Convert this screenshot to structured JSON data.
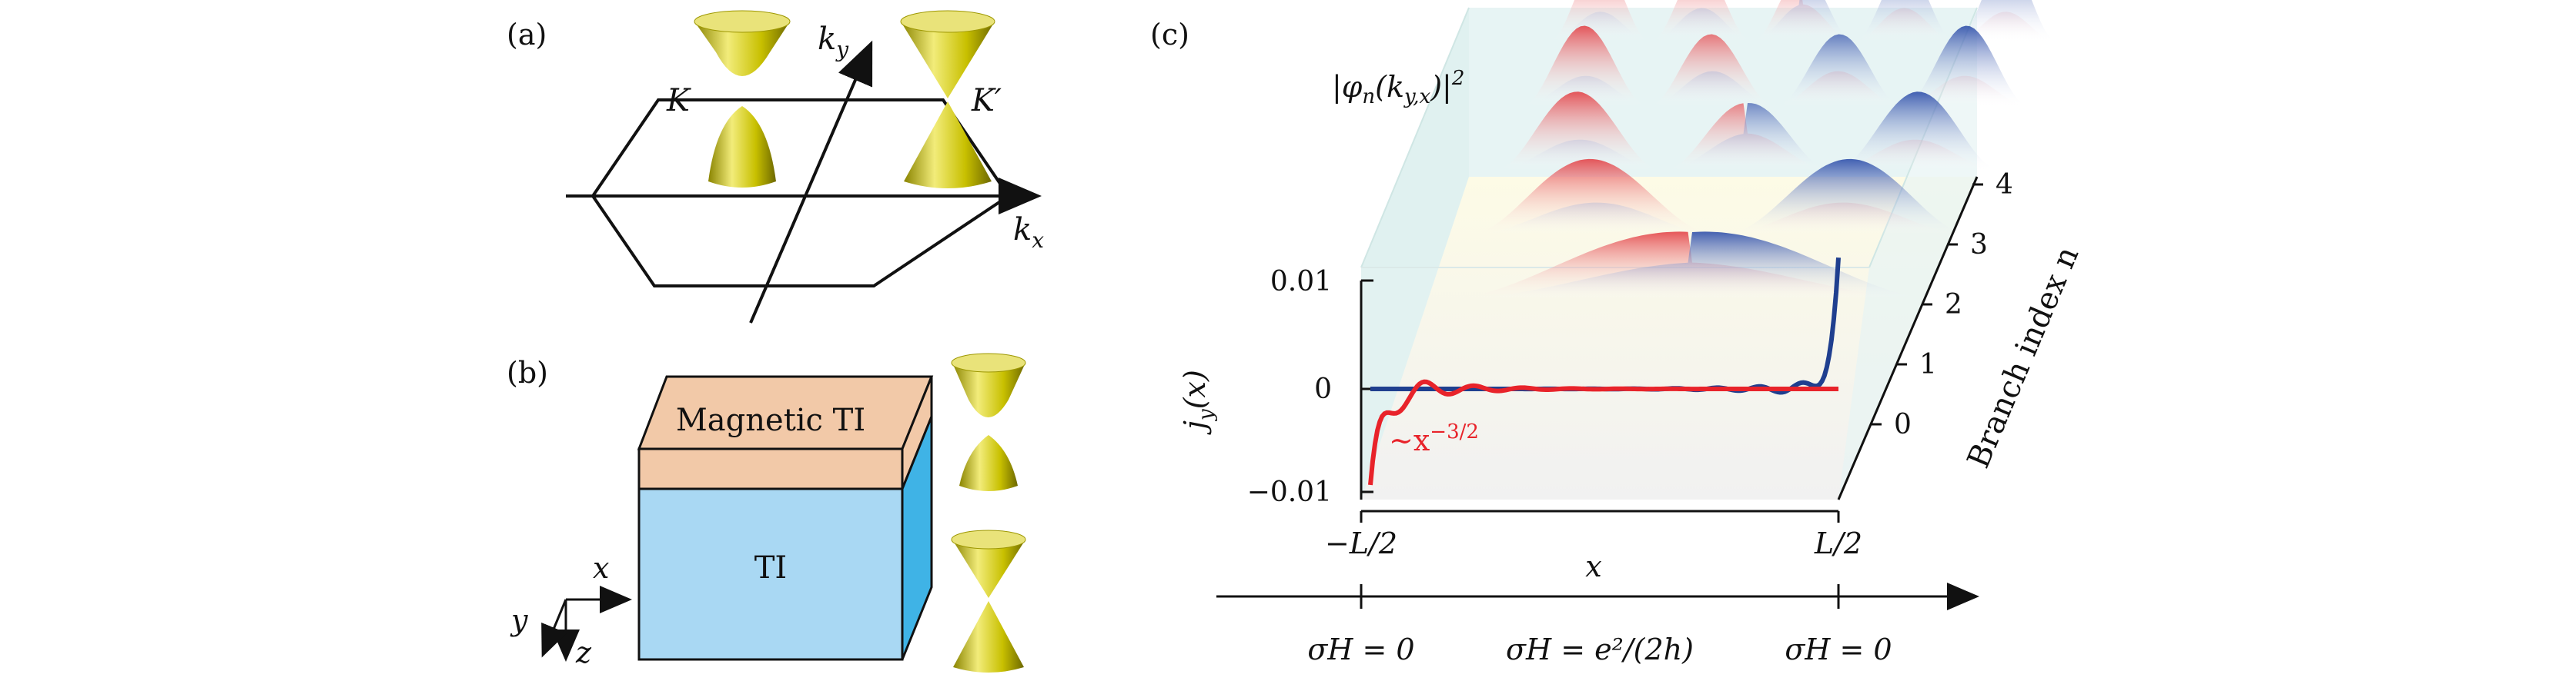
{
  "panel_a": {
    "label": "(a)",
    "valley_K": "K",
    "valley_Kprime": "K′",
    "axis_kx_base": "k",
    "axis_kx_sub": "x",
    "axis_ky_base": "k",
    "axis_ky_sub": "y"
  },
  "panel_b": {
    "label": "(b)",
    "top_layer": "Magnetic TI",
    "bottom_layer": "TI",
    "axis_x": "x",
    "axis_y": "y",
    "axis_z": "z"
  },
  "panel_c": {
    "label": "(c)",
    "wavefunction_label": "|φn(ky,x)|²",
    "wf_prefix": "|φ",
    "wf_n": "n",
    "wf_open": "(k",
    "wf_sub": "y,x",
    "wf_close": ")|",
    "wf_sup": "2",
    "ylabel_base": "j",
    "ylabel_sub": "y",
    "ylabel_arg": "(x)",
    "ytick_top": "0.01",
    "ytick_mid": "0",
    "ytick_bot": "−0.01",
    "decay_prefix": "∼x",
    "decay_exp": "−3/2",
    "x_left": "−L/2",
    "x_right": "L/2",
    "x_label": "x",
    "branch_label": "Branch index n",
    "branch_ticks": [
      "0",
      "1",
      "2",
      "3",
      "4"
    ],
    "sigma_left": "σH = 0",
    "sigma_mid": "σH = e²/(2h)",
    "sigma_right": "σH = 0",
    "colors": {
      "red": "#e8232a",
      "blue": "#1f3f8f",
      "cone": "#c9c400"
    }
  }
}
